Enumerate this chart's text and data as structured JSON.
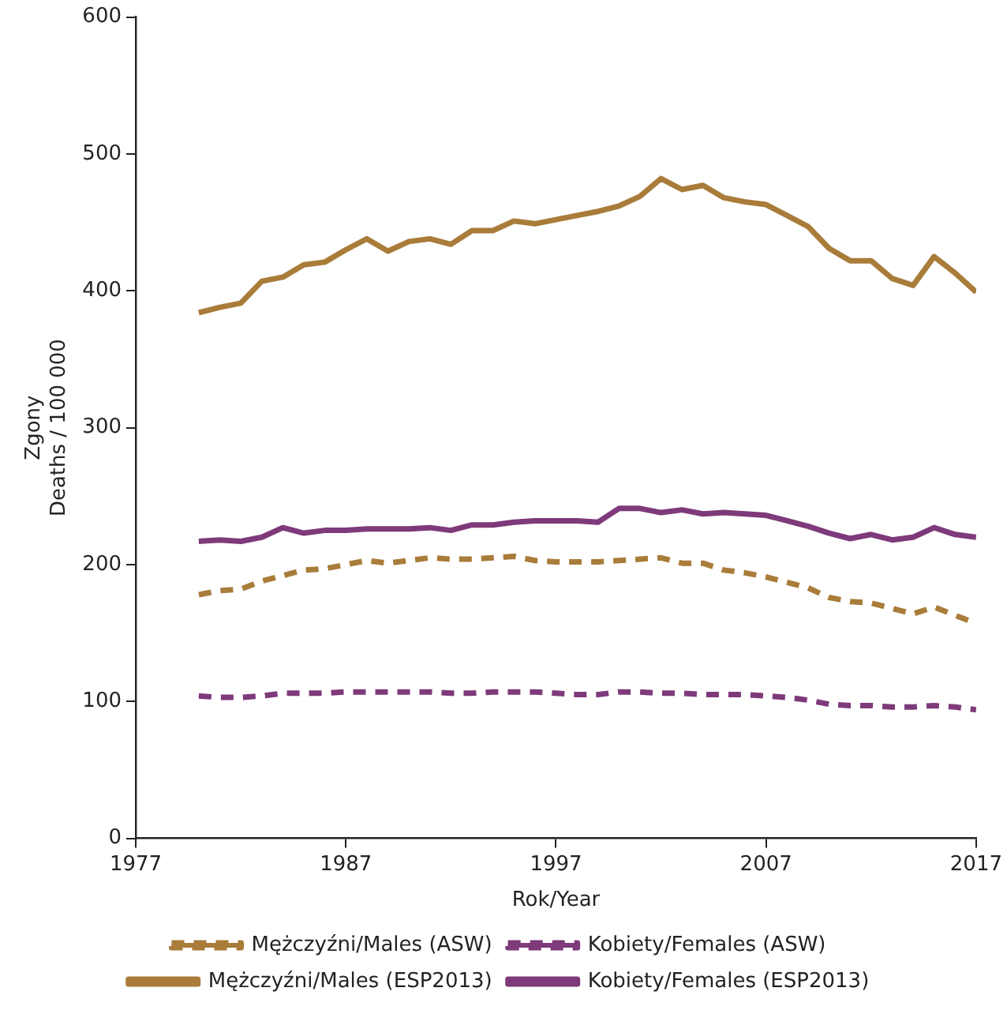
{
  "chart_data": {
    "type": "line",
    "xlabel": "Rok/Year",
    "ylabel": "Zgony\nDeaths / 100 000",
    "x": [
      1980,
      1981,
      1982,
      1983,
      1984,
      1985,
      1986,
      1987,
      1988,
      1989,
      1990,
      1991,
      1992,
      1993,
      1994,
      1995,
      1996,
      1997,
      1998,
      1999,
      2000,
      2001,
      2002,
      2003,
      2004,
      2005,
      2006,
      2007,
      2008,
      2009,
      2010,
      2011,
      2012,
      2013,
      2014,
      2015,
      2016,
      2017
    ],
    "xlim": [
      1977,
      2017
    ],
    "xticks": [
      1977,
      1987,
      1997,
      2007,
      2017
    ],
    "ylim": [
      0,
      600
    ],
    "yticks": [
      0,
      100,
      200,
      300,
      400,
      500,
      600
    ],
    "grid": false,
    "legend": "bottom",
    "marker": "none",
    "series": [
      {
        "name": "Mężczyźni/Males (ASW)",
        "color": "#a97c3a",
        "line_style": "dashed",
        "values": [
          178,
          181,
          182,
          188,
          192,
          196,
          197,
          200,
          203,
          201,
          203,
          205,
          204,
          204,
          205,
          206,
          203,
          202,
          202,
          202,
          203,
          204,
          205,
          201,
          201,
          196,
          194,
          191,
          187,
          183,
          176,
          173,
          172,
          168,
          164,
          169,
          163,
          157
        ]
      },
      {
        "name": "Kobiety/Females (ASW)",
        "color": "#7e3a7a",
        "line_style": "dashed",
        "values": [
          104,
          103,
          103,
          104,
          106,
          106,
          106,
          107,
          107,
          107,
          107,
          107,
          106,
          106,
          107,
          107,
          107,
          106,
          105,
          105,
          107,
          107,
          106,
          106,
          105,
          105,
          105,
          104,
          103,
          101,
          98,
          97,
          97,
          96,
          96,
          97,
          96,
          94
        ]
      },
      {
        "name": "Mężczyźni/Males (ESP2013)",
        "color": "#a97c3a",
        "line_style": "solid",
        "values": [
          384,
          388,
          391,
          407,
          410,
          419,
          421,
          430,
          438,
          429,
          436,
          438,
          434,
          444,
          444,
          451,
          449,
          452,
          455,
          458,
          462,
          469,
          482,
          474,
          477,
          468,
          465,
          463,
          455,
          447,
          431,
          422,
          422,
          409,
          404,
          425,
          413,
          399
        ]
      },
      {
        "name": "Kobiety/Females (ESP2013)",
        "color": "#7e3a7a",
        "line_style": "solid",
        "values": [
          217,
          218,
          217,
          220,
          227,
          223,
          225,
          225,
          226,
          226,
          226,
          227,
          225,
          229,
          229,
          231,
          232,
          232,
          232,
          231,
          241,
          241,
          238,
          240,
          237,
          238,
          237,
          236,
          232,
          228,
          223,
          219,
          222,
          218,
          220,
          227,
          222,
          220
        ]
      }
    ]
  }
}
